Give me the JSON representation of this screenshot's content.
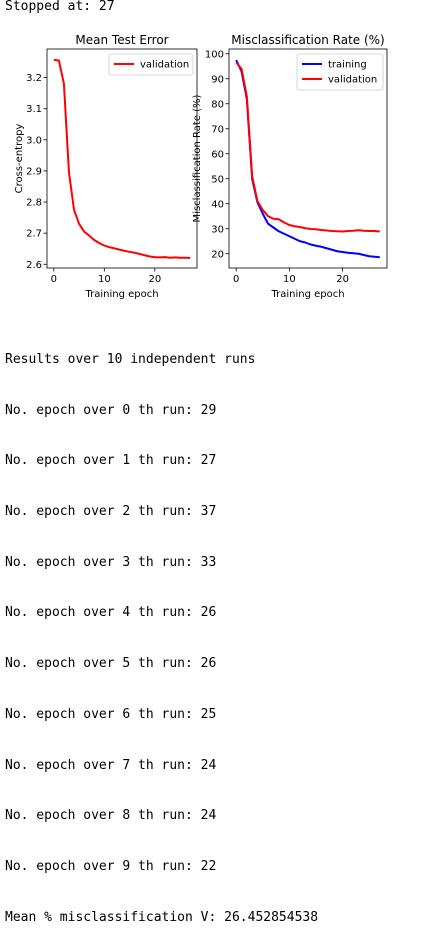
{
  "header": {
    "stopped_text": "Stopped at: 27"
  },
  "chart_data": [
    {
      "type": "line",
      "title": "Mean Test Error",
      "xlabel": "Training epoch",
      "ylabel": "Cross-entropy",
      "xlim": [
        -1.35,
        28.35
      ],
      "ylim": [
        2.588,
        3.292
      ],
      "xticks": [
        0,
        10,
        20
      ],
      "yticks": [
        2.6,
        2.7,
        2.8,
        2.9,
        3.0,
        3.1,
        3.2
      ],
      "ytick_labels": [
        "2.6",
        "2.7",
        "2.8",
        "2.9",
        "3.0",
        "3.1",
        "3.2"
      ],
      "legend_position": "upper right",
      "series": [
        {
          "name": "validation",
          "color": "#ff0000",
          "x": [
            0,
            1,
            2,
            3,
            4,
            5,
            6,
            7,
            8,
            9,
            10,
            11,
            12,
            13,
            14,
            15,
            16,
            17,
            18,
            19,
            20,
            21,
            22,
            23,
            24,
            25,
            26,
            27
          ],
          "values": [
            3.257,
            3.255,
            3.18,
            2.895,
            2.775,
            2.73,
            2.705,
            2.692,
            2.678,
            2.668,
            2.66,
            2.655,
            2.651,
            2.647,
            2.643,
            2.64,
            2.637,
            2.633,
            2.629,
            2.625,
            2.623,
            2.622,
            2.623,
            2.621,
            2.622,
            2.621,
            2.621,
            2.62
          ]
        }
      ]
    },
    {
      "type": "line",
      "title": "Misclassification Rate (%)",
      "xlabel": "Training epoch",
      "ylabel": "Misclassification Rate (%)",
      "xlim": [
        -1.35,
        28.35
      ],
      "ylim": [
        14.3,
        101.9
      ],
      "xticks": [
        0,
        10,
        20
      ],
      "yticks": [
        20,
        30,
        40,
        50,
        60,
        70,
        80,
        90,
        100
      ],
      "ytick_labels": [
        "20",
        "30",
        "40",
        "50",
        "60",
        "70",
        "80",
        "90",
        "100"
      ],
      "legend_position": "upper right",
      "series": [
        {
          "name": "training",
          "color": "#0000ff",
          "x": [
            0,
            1,
            2,
            3,
            4,
            5,
            6,
            7,
            8,
            9,
            10,
            11,
            12,
            13,
            14,
            15,
            16,
            17,
            18,
            19,
            20,
            21,
            22,
            23,
            24,
            25,
            26,
            27
          ],
          "values": [
            97.5,
            93,
            82,
            50,
            40.5,
            36,
            32,
            30.5,
            29,
            28,
            27,
            26,
            25,
            24.5,
            23.7,
            23.2,
            22.8,
            22.2,
            21.6,
            21,
            20.7,
            20.4,
            20.2,
            20,
            19.5,
            19,
            18.8,
            18.6
          ]
        },
        {
          "name": "validation",
          "color": "#ff0000",
          "x": [
            0,
            1,
            2,
            3,
            4,
            5,
            6,
            7,
            8,
            9,
            10,
            11,
            12,
            13,
            14,
            15,
            16,
            17,
            18,
            19,
            20,
            21,
            22,
            23,
            24,
            25,
            26,
            27
          ],
          "values": [
            96.5,
            94,
            83,
            51,
            41,
            37.5,
            35,
            34,
            33.8,
            32.5,
            31.5,
            31,
            30.7,
            30.2,
            29.9,
            29.8,
            29.5,
            29.3,
            29.1,
            29,
            28.9,
            29.1,
            29.2,
            29.4,
            29.2,
            29.1,
            29.1,
            28.9
          ]
        }
      ]
    }
  ],
  "results": {
    "heading": "Results over 10 independent runs",
    "lines": [
      "No. epoch over 0 th run: 29",
      "No. epoch over 1 th run: 27",
      "No. epoch over 2 th run: 37",
      "No. epoch over 3 th run: 33",
      "No. epoch over 4 th run: 26",
      "No. epoch over 5 th run: 26",
      "No. epoch over 6 th run: 25",
      "No. epoch over 7 th run: 24",
      "No. epoch over 8 th run: 24",
      "No. epoch over 9 th run: 22"
    ],
    "summary": "Mean % misclassification V: 26.452854538"
  }
}
